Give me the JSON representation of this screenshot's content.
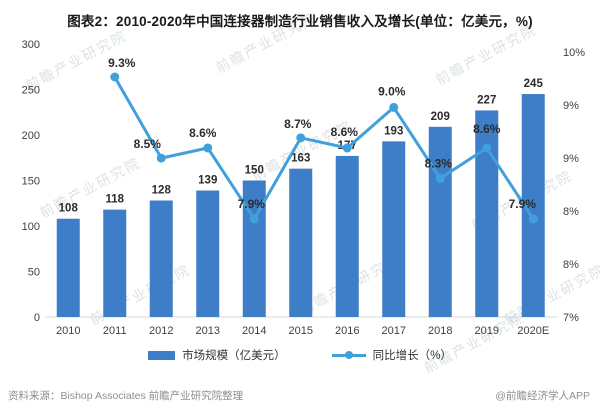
{
  "title": "图表2：2010-2020年中国连接器制造行业销售收入及增长(单位：亿美元，%)",
  "chart_data": {
    "type": "bar",
    "subtype": "combo-bar-line",
    "categories": [
      "2010",
      "2011",
      "2012",
      "2013",
      "2014",
      "2015",
      "2016",
      "2017",
      "2018",
      "2019",
      "2020E"
    ],
    "series": [
      {
        "name": "市场规模（亿美元）",
        "type": "bar",
        "color": "#3E7DC8",
        "values": [
          108,
          118,
          128,
          139,
          150,
          163,
          177,
          193,
          209,
          227,
          245
        ]
      },
      {
        "name": "同比增长（%）",
        "type": "line",
        "color": "#41A0DC",
        "values": [
          null,
          9.3,
          8.5,
          8.6,
          7.9,
          8.7,
          8.6,
          9.0,
          8.3,
          8.6,
          7.9
        ]
      }
    ],
    "y_left": {
      "min": 0,
      "max": 300,
      "ticks": [
        "300",
        "250",
        "200",
        "150",
        "100",
        "50",
        "0"
      ]
    },
    "y_right": {
      "min": 7,
      "max": 10,
      "ticks": [
        "10%",
        "9%",
        "9%",
        "8%",
        "8%",
        "7%"
      ]
    },
    "grid": false,
    "legend_position": "bottom"
  },
  "footer": {
    "source": "资料来源：Bishop Associates 前瞻产业研究院整理",
    "credit": "@前瞻经济学人APP"
  },
  "watermark": {
    "text": "前瞻产业研究院"
  },
  "colors": {
    "bar": "#3E7DC8",
    "line": "#41A0DC",
    "axis_text": "#404040",
    "value_text": "#2b2b2b",
    "baseline": "#d9d9d9",
    "footer_text": "#8f8f8f"
  }
}
